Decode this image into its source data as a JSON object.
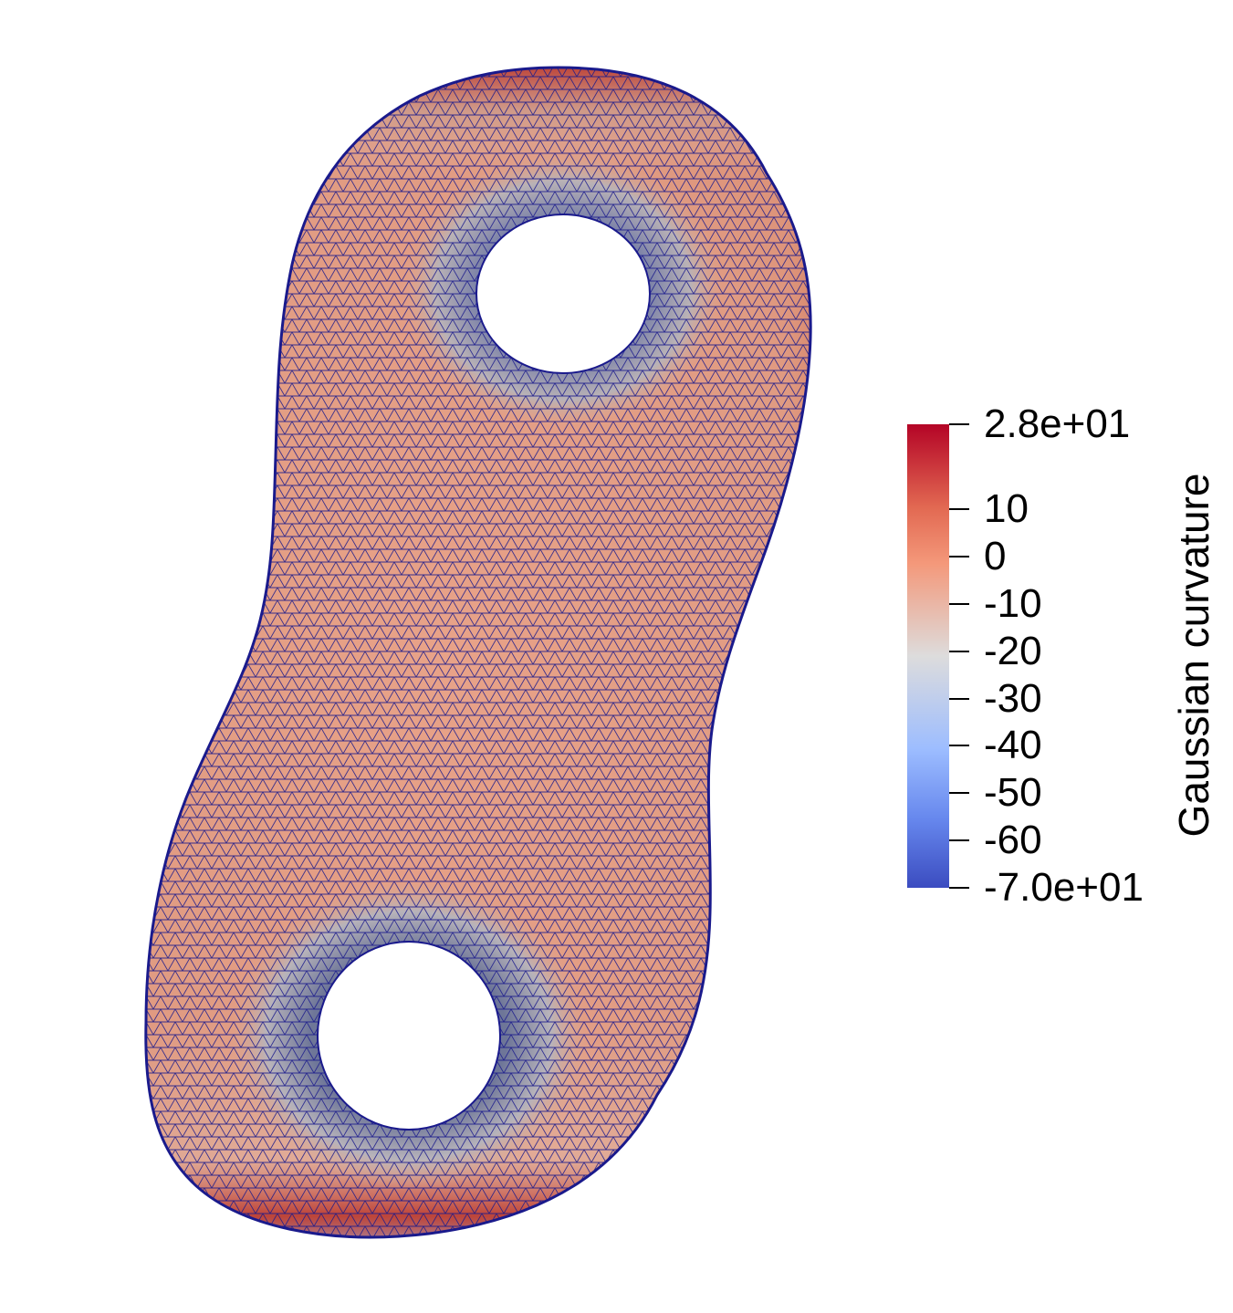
{
  "colorbar": {
    "title": "Gaussian curvature",
    "range": [
      -70,
      28
    ],
    "colors": {
      "max": "#b40426",
      "high": "#e26952",
      "upper_mid": "#f4987a",
      "mid": "#dddcdc",
      "lower_mid": "#9dbdff",
      "low": "#6788ee",
      "min": "#3b4cc0"
    },
    "ticks": [
      {
        "value": 28,
        "label": "2.8e+01"
      },
      {
        "value": 10,
        "label": "10"
      },
      {
        "value": 0,
        "label": "0"
      },
      {
        "value": -10,
        "label": "-10"
      },
      {
        "value": -20,
        "label": "-20"
      },
      {
        "value": -30,
        "label": "-30"
      },
      {
        "value": -40,
        "label": "-40"
      },
      {
        "value": -50,
        "label": "-50"
      },
      {
        "value": -60,
        "label": "-60"
      },
      {
        "value": -70,
        "label": "-7.0e+01"
      }
    ]
  },
  "surface": {
    "description_icon": "double-torus-mesh",
    "mesh_color": "#1a1a8c",
    "base_color": "#e0a088",
    "rim_color": "#b8352c",
    "neck_color": "#aab0c8"
  }
}
